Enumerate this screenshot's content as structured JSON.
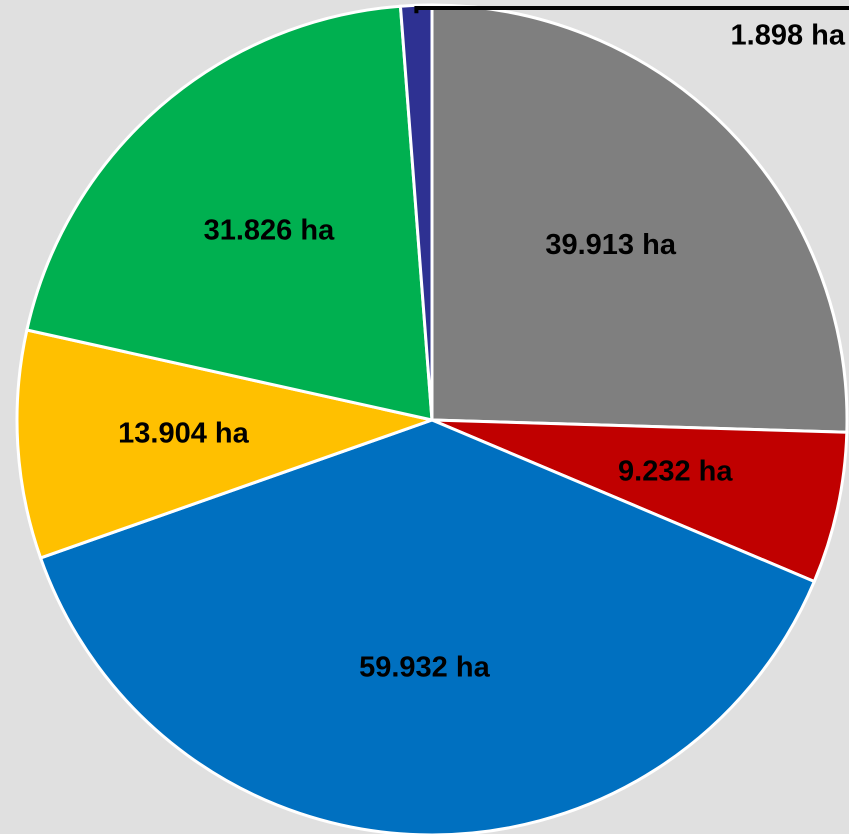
{
  "chart_data": {
    "type": "pie",
    "categories": [
      null,
      null,
      null,
      null,
      null,
      null
    ],
    "values": [
      39.913,
      9.232,
      59.932,
      13.904,
      31.826,
      1.898
    ],
    "value_labels": [
      "39.913 ha",
      "9.232 ha",
      "59.932 ha",
      "13.904 ha",
      "31.826 ha",
      "1.898 ha"
    ],
    "colors": [
      "#7f7f7f",
      "#c00000",
      "#0070c0",
      "#ffc000",
      "#00b050",
      "#2e3192"
    ]
  }
}
